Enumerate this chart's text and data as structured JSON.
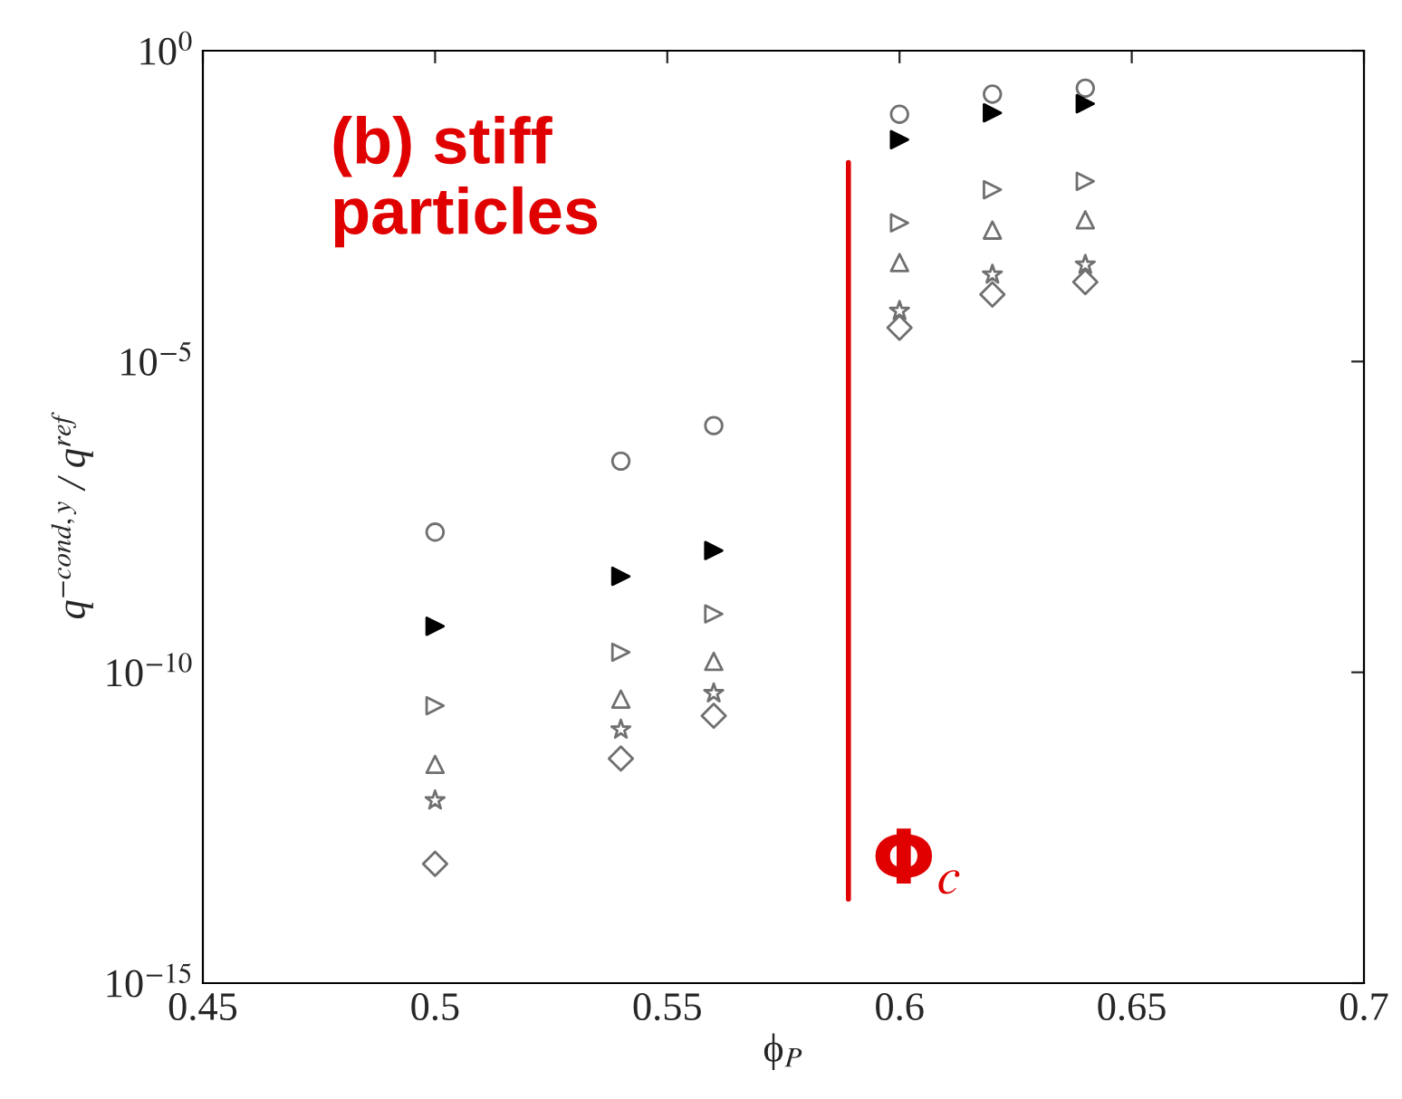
{
  "chart_data": {
    "type": "scatter",
    "xlabel": "ϕ$_{P}$",
    "ylabel": "q$^{−cond,y}$ / q$^{ref}$",
    "x": [
      0.5,
      0.54,
      0.56,
      0.6,
      0.62,
      0.64
    ],
    "series": [
      {
        "marker": "circle",
        "color": "#707070",
        "values": [
          1.8e-08,
          2.5e-07,
          9.3e-07,
          0.095,
          0.2,
          0.25
        ]
      },
      {
        "marker": "triangle-right",
        "color": "#000000",
        "values": [
          5.5e-10,
          3.5e-09,
          9.1e-09,
          0.037,
          0.1,
          0.14
        ]
      },
      {
        "marker": "triangle-right",
        "color": "#707070",
        "values": [
          2.9e-11,
          2.1e-10,
          8.7e-10,
          0.0017,
          0.0058,
          0.0079
        ]
      },
      {
        "marker": "triangle-up",
        "color": "#707070",
        "values": [
          3.3e-12,
          3.7e-11,
          1.5e-10,
          0.00039,
          0.0013,
          0.0019
        ]
      },
      {
        "marker": "star",
        "color": "#707070",
        "values": [
          8.7e-13,
          1.2e-11,
          4.6e-11,
          6.5e-05,
          0.00025,
          0.00036
        ]
      },
      {
        "marker": "diamond",
        "color": "#707070",
        "values": [
          8.3e-14,
          4.1e-12,
          2e-11,
          3.5e-05,
          0.00012,
          0.00019
        ]
      }
    ],
    "log": "y",
    "xlim": [
      0.45,
      0.7
    ],
    "xticks": [
      0.45,
      0.5,
      0.55,
      0.6,
      0.65,
      0.7
    ],
    "ylim": [
      1e-15,
      1
    ],
    "yticks": [
      {
        "value": 1e-15,
        "label": "10$^{−15}$"
      },
      {
        "value": 1e-10,
        "label": "10$^{−10}$"
      },
      {
        "value": 1e-05,
        "label": "10$^{−5}$"
      },
      {
        "value": 1,
        "label": "10$^{0}$"
      }
    ],
    "ref_lines": [
      {
        "axis": "x",
        "value": 0.589,
        "label": "Φ$_{c}$",
        "color": "#e00000"
      }
    ],
    "annotations": [
      "(b) stiff particles"
    ],
    "grid": false,
    "legend": false
  }
}
